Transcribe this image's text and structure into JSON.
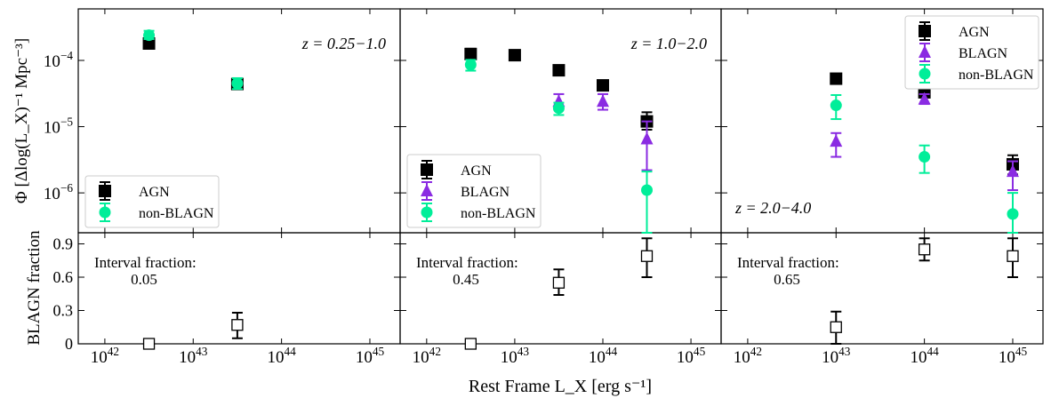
{
  "figure": {
    "xlabel": "Rest Frame L_X [erg s⁻¹]",
    "ylabel_top": "Φ [Δlog(L_X)⁻¹ Mpc⁻³]",
    "ylabel_bottom": "BLAGN fraction",
    "xtick_labels": [
      "10^42",
      "10^43",
      "10^44",
      "10^45"
    ],
    "ytick_labels_top": [
      "10^-6",
      "10^-5",
      "10^-4"
    ],
    "ytick_labels_bottom": [
      "0",
      "0.3",
      "0.6",
      "0.9"
    ],
    "colors": {
      "AGN": "#000000",
      "BLAGN": "#8a2be2",
      "non-BLAGN": "#00ee99"
    }
  },
  "chart_data": [
    {
      "type": "scatter",
      "panel": "top-left",
      "annotation": "z = 0.25−1.0",
      "legend": {
        "placement": "lower-left",
        "entries": [
          "AGN",
          "non-BLAGN"
        ]
      },
      "xscale": "log",
      "yscale": "log",
      "xlim": [
        5e+41,
        2.2e+45
      ],
      "ylim": [
        2.5e-07,
        0.0006
      ],
      "series": [
        {
          "name": "AGN",
          "marker": "square",
          "color": "#000000",
          "x": [
            3.16e+42,
            3.16e+43
          ],
          "y": [
            0.00018,
            4.4e-05
          ],
          "ylo": [
            0.00016,
            3.8e-05
          ],
          "yhi": [
            0.0002,
            5e-05
          ]
        },
        {
          "name": "non-BLAGN",
          "marker": "circle",
          "color": "#00ee99",
          "x": [
            3.16e+42,
            3.16e+43
          ],
          "y": [
            0.00024,
            4.5e-05
          ],
          "ylo": [
            0.00021,
            3.7e-05
          ],
          "yhi": [
            0.00028,
            5.4e-05
          ]
        }
      ]
    },
    {
      "type": "scatter",
      "panel": "top-middle",
      "annotation": "z = 1.0−2.0",
      "legend": {
        "placement": "lower-left",
        "entries": [
          "AGN",
          "BLAGN",
          "non-BLAGN"
        ]
      },
      "xscale": "log",
      "yscale": "log",
      "xlim": [
        5e+41,
        2.2e+45
      ],
      "ylim": [
        2.5e-07,
        0.0006
      ],
      "series": [
        {
          "name": "AGN",
          "marker": "square",
          "color": "#000000",
          "x": [
            3.16e+42,
            1e+43,
            3.16e+43,
            1e+44,
            3.16e+44
          ],
          "y": [
            0.000125,
            0.00012,
            7.1e-05,
            4.2e-05,
            1.2e-05
          ],
          "ylo": [
            0.000105,
            0.00011,
            6.3e-05,
            3.6e-05,
            9e-06
          ],
          "yhi": [
            0.00015,
            0.00013,
            7.9e-05,
            4.8e-05,
            1.65e-05
          ]
        },
        {
          "name": "BLAGN",
          "marker": "triangle",
          "color": "#8a2be2",
          "x": [
            3.16e+43,
            1e+44,
            3.16e+44
          ],
          "y": [
            2.4e-05,
            2.4e-05,
            6.5e-06
          ],
          "ylo": [
            1.8e-05,
            1.8e-05,
            2.2e-06
          ],
          "yhi": [
            3.1e-05,
            3.1e-05,
            1.2e-05
          ]
        },
        {
          "name": "non-BLAGN",
          "marker": "circle",
          "color": "#00ee99",
          "x": [
            3.16e+42,
            3.16e+43,
            3.16e+44
          ],
          "y": [
            8.6e-05,
            1.9e-05,
            1.1e-06
          ],
          "ylo": [
            7e-05,
            1.5e-05,
            1e-09
          ],
          "yhi": [
            0.000102,
            2.3e-05,
            2.1e-06
          ]
        }
      ]
    },
    {
      "type": "scatter",
      "panel": "top-right",
      "annotation": "z = 2.0−4.0",
      "legend": {
        "placement": "upper-right",
        "entries": [
          "AGN",
          "BLAGN",
          "non-BLAGN"
        ]
      },
      "xscale": "log",
      "yscale": "log",
      "xlim": [
        5e+41,
        2.2e+45
      ],
      "ylim": [
        2.5e-07,
        0.0006
      ],
      "series": [
        {
          "name": "AGN",
          "marker": "square",
          "color": "#000000",
          "x": [
            1e+43,
            1e+44,
            1e+45
          ],
          "y": [
            5.3e-05,
            3.3e-05,
            2.7e-06
          ],
          "ylo": [
            4.5e-05,
            2.8e-05,
            1.9e-06
          ],
          "yhi": [
            6.2e-05,
            3.9e-05,
            3.7e-06
          ]
        },
        {
          "name": "BLAGN",
          "marker": "triangle",
          "color": "#8a2be2",
          "x": [
            1e+43,
            1e+44,
            1e+45
          ],
          "y": [
            6e-06,
            2.6e-05,
            2.1e-06
          ],
          "ylo": [
            3.5e-06,
            2.2e-05,
            1.1e-06
          ],
          "yhi": [
            8e-06,
            3.1e-05,
            3e-06
          ]
        },
        {
          "name": "non-BLAGN",
          "marker": "circle",
          "color": "#00ee99",
          "x": [
            1e+43,
            1e+44,
            1e+45
          ],
          "y": [
            2.1e-05,
            3.5e-06,
            4.8e-07
          ],
          "ylo": [
            1.3e-05,
            2e-06,
            1e-09
          ],
          "yhi": [
            3e-05,
            5.2e-06,
            1e-06
          ]
        }
      ]
    },
    {
      "type": "scatter",
      "panel": "bottom-left",
      "annotation": [
        "Interval fraction:",
        "0.05"
      ],
      "xscale": "log",
      "yscale": "linear",
      "xlim": [
        5e+41,
        2.2e+45
      ],
      "ylim": [
        0,
        1.0
      ],
      "series": [
        {
          "name": "BLAGN fraction",
          "marker": "open-square",
          "color": "#000000",
          "x": [
            3.16e+42,
            3.16e+43
          ],
          "y": [
            0.0,
            0.17
          ],
          "ylo": [
            0.0,
            0.05
          ],
          "yhi": [
            0.02,
            0.28
          ]
        }
      ]
    },
    {
      "type": "scatter",
      "panel": "bottom-middle",
      "annotation": [
        "Interval fraction:",
        "0.45"
      ],
      "xscale": "log",
      "yscale": "linear",
      "xlim": [
        5e+41,
        2.2e+45
      ],
      "ylim": [
        0,
        1.0
      ],
      "series": [
        {
          "name": "BLAGN fraction",
          "marker": "open-square",
          "color": "#000000",
          "x": [
            3.16e+42,
            3.16e+43,
            3.16e+44
          ],
          "y": [
            0.0,
            0.55,
            0.79
          ],
          "ylo": [
            0.0,
            0.44,
            0.6
          ],
          "yhi": [
            0.02,
            0.67,
            0.95
          ]
        }
      ]
    },
    {
      "type": "scatter",
      "panel": "bottom-right",
      "annotation": [
        "Interval fraction:",
        "0.65"
      ],
      "xscale": "log",
      "yscale": "linear",
      "xlim": [
        5e+41,
        2.2e+45
      ],
      "ylim": [
        0,
        1.0
      ],
      "series": [
        {
          "name": "BLAGN fraction",
          "marker": "open-square",
          "color": "#000000",
          "x": [
            1e+43,
            1e+44,
            1e+45
          ],
          "y": [
            0.15,
            0.85,
            0.79
          ],
          "ylo": [
            0.0,
            0.75,
            0.6
          ],
          "yhi": [
            0.29,
            0.95,
            0.95
          ]
        }
      ]
    }
  ]
}
